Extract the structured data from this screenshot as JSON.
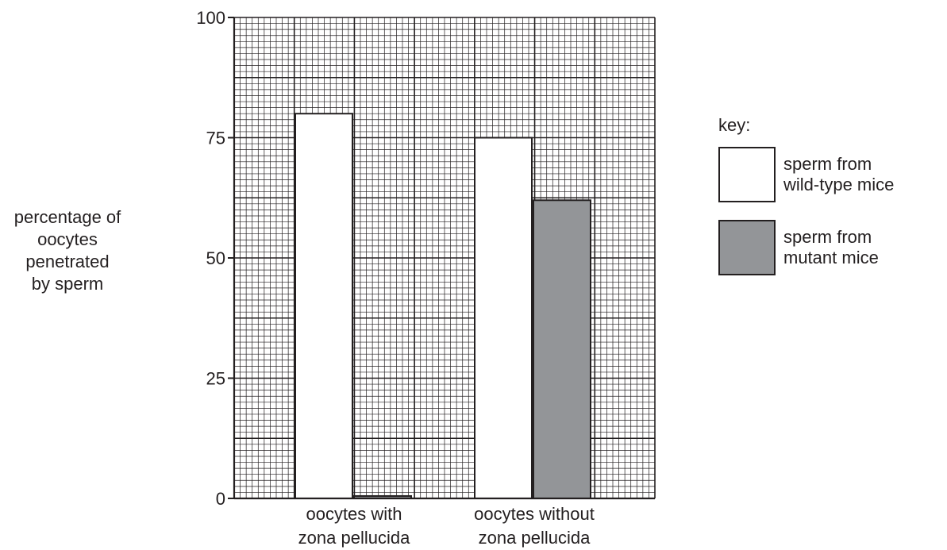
{
  "chart_data": {
    "type": "bar",
    "categories": [
      [
        "oocytes with",
        "zona pellucida"
      ],
      [
        "oocytes without",
        "zona pellucida"
      ]
    ],
    "series": [
      {
        "name": [
          "sperm from",
          "wild-type mice"
        ],
        "values": [
          80,
          75
        ],
        "color": "#ffffff"
      },
      {
        "name": [
          "sperm from",
          "mutant mice"
        ],
        "values": [
          0.5,
          62
        ],
        "color": "#939598"
      }
    ],
    "ylabel": [
      "percentage of",
      "oocytes",
      "penetrated",
      "by sperm"
    ],
    "yticks": [
      "0",
      "25",
      "50",
      "75",
      "100"
    ],
    "ylim": [
      0,
      100
    ],
    "grid": true,
    "legend_title": "key:",
    "legend_position": "right"
  }
}
